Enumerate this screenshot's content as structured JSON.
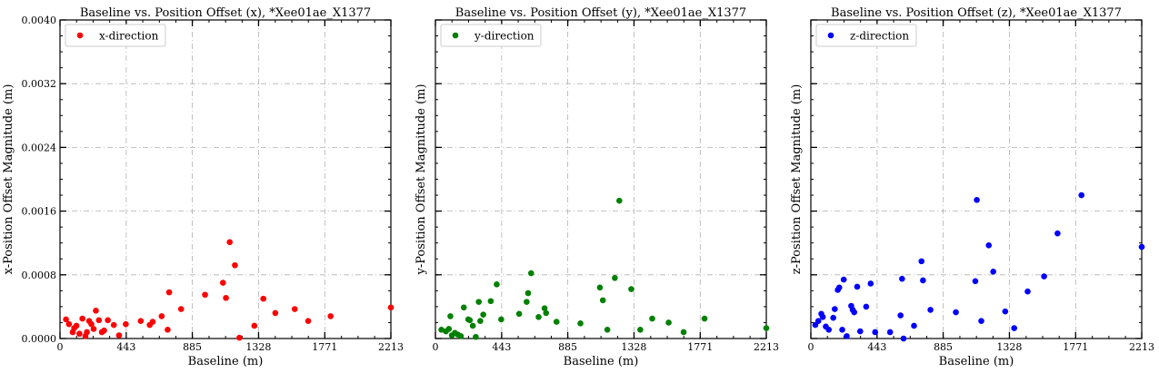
{
  "figure": {
    "ylabel_ticks": [
      "0.0000",
      "0.0008",
      "0.0016",
      "0.0024",
      "0.0032",
      "0.0040"
    ],
    "xlabel_ticks": [
      "0",
      "443",
      "885",
      "1328",
      "1771",
      "2213"
    ]
  },
  "chart_data": [
    {
      "type": "scatter",
      "title": "Baseline vs. Position Offset (x), *Xee01ae_X1377",
      "xlabel": "Baseline (m)",
      "ylabel": "x-Position Offset Magnitude (m)",
      "xlim": [
        0,
        2213
      ],
      "ylim": [
        0,
        0.004
      ],
      "xticks": [
        0,
        443,
        885,
        1328,
        1771,
        2213
      ],
      "yticks": [
        0,
        0.0008,
        0.0016,
        0.0024,
        0.0032,
        0.004
      ],
      "ytick_labels_shown": true,
      "grid": true,
      "legend": "top-left",
      "series": [
        {
          "name": "x-direction",
          "color": "#ff0000",
          "points": [
            [
              40,
              0.00024
            ],
            [
              60,
              0.00018
            ],
            [
              85,
              8e-05
            ],
            [
              95,
              0.00013
            ],
            [
              110,
              0.00016
            ],
            [
              130,
              6e-05
            ],
            [
              150,
              0.00025
            ],
            [
              170,
              3e-05
            ],
            [
              180,
              8e-05
            ],
            [
              195,
              0.00022
            ],
            [
              210,
              0.00018
            ],
            [
              225,
              0.00012
            ],
            [
              240,
              0.00035
            ],
            [
              260,
              0.00023
            ],
            [
              280,
              8e-05
            ],
            [
              295,
              0.0001
            ],
            [
              320,
              0.00023
            ],
            [
              360,
              0.00017
            ],
            [
              395,
              4e-05
            ],
            [
              440,
              0.00018
            ],
            [
              540,
              0.00022
            ],
            [
              600,
              0.00017
            ],
            [
              620,
              0.00021
            ],
            [
              680,
              0.00028
            ],
            [
              720,
              0.00011
            ],
            [
              730,
              0.00058
            ],
            [
              810,
              0.00037
            ],
            [
              970,
              0.00055
            ],
            [
              1090,
              0.0007
            ],
            [
              1110,
              0.00051
            ],
            [
              1135,
              0.00121
            ],
            [
              1170,
              0.00092
            ],
            [
              1200,
              1e-05
            ],
            [
              1300,
              0.00016
            ],
            [
              1360,
              0.0005
            ],
            [
              1440,
              0.00032
            ],
            [
              1570,
              0.00037
            ],
            [
              1660,
              0.00022
            ],
            [
              1810,
              0.00028
            ],
            [
              2213,
              0.00039
            ]
          ]
        }
      ]
    },
    {
      "type": "scatter",
      "title": "Baseline vs. Position Offset (y), *Xee01ae_X1377",
      "xlabel": "Baseline (m)",
      "ylabel": "y-Position Offset Magnitude (m)",
      "xlim": [
        0,
        2213
      ],
      "ylim": [
        0,
        0.004
      ],
      "xticks": [
        0,
        443,
        885,
        1328,
        1771,
        2213
      ],
      "yticks": [
        0,
        0.0008,
        0.0016,
        0.0024,
        0.0032,
        0.004
      ],
      "ytick_labels_shown": false,
      "grid": true,
      "legend": "top-left",
      "series": [
        {
          "name": "y-direction",
          "color": "#008000",
          "points": [
            [
              40,
              0.00011
            ],
            [
              70,
              9e-05
            ],
            [
              90,
              0.00012
            ],
            [
              100,
              0.00028
            ],
            [
              110,
              4e-05
            ],
            [
              130,
              7e-05
            ],
            [
              150,
              5e-05
            ],
            [
              170,
              3e-05
            ],
            [
              190,
              0.00039
            ],
            [
              220,
              0.00024
            ],
            [
              230,
              0.00023
            ],
            [
              250,
              0.00016
            ],
            [
              270,
              2e-05
            ],
            [
              290,
              0.00046
            ],
            [
              300,
              0.00022
            ],
            [
              320,
              0.0003
            ],
            [
              370,
              0.00047
            ],
            [
              410,
              0.00068
            ],
            [
              440,
              0.00024
            ],
            [
              560,
              0.00031
            ],
            [
              610,
              0.00046
            ],
            [
              620,
              0.00057
            ],
            [
              640,
              0.00082
            ],
            [
              690,
              0.00027
            ],
            [
              730,
              0.00038
            ],
            [
              740,
              0.00032
            ],
            [
              810,
              0.00021
            ],
            [
              970,
              0.00019
            ],
            [
              1100,
              0.00064
            ],
            [
              1120,
              0.00048
            ],
            [
              1150,
              0.00011
            ],
            [
              1200,
              0.00076
            ],
            [
              1230,
              0.00173
            ],
            [
              1310,
              0.00062
            ],
            [
              1370,
              0.00011
            ],
            [
              1450,
              0.00025
            ],
            [
              1560,
              0.0002
            ],
            [
              1660,
              8e-05
            ],
            [
              1800,
              0.00025
            ],
            [
              2213,
              0.00013
            ]
          ]
        }
      ]
    },
    {
      "type": "scatter",
      "title": "Baseline vs. Position Offset (z), *Xee01ae_X1377",
      "xlabel": "Baseline (m)",
      "ylabel": "z-Position Offset Magnitude (m)",
      "xlim": [
        0,
        2213
      ],
      "ylim": [
        0,
        0.004
      ],
      "xticks": [
        0,
        443,
        885,
        1328,
        1771,
        2213
      ],
      "yticks": [
        0,
        0.0008,
        0.0016,
        0.0024,
        0.0032,
        0.004
      ],
      "ytick_labels_shown": false,
      "grid": true,
      "legend": "top-left",
      "series": [
        {
          "name": "z-direction",
          "color": "#0000ff",
          "points": [
            [
              30,
              0.00017
            ],
            [
              50,
              0.00022
            ],
            [
              70,
              0.00031
            ],
            [
              80,
              0.00027
            ],
            [
              100,
              0.00015
            ],
            [
              120,
              0.00011
            ],
            [
              150,
              0.00026
            ],
            [
              160,
              0.00037
            ],
            [
              180,
              0.00061
            ],
            [
              190,
              0.00064
            ],
            [
              210,
              0.00011
            ],
            [
              220,
              0.00074
            ],
            [
              240,
              3e-05
            ],
            [
              270,
              0.00041
            ],
            [
              280,
              0.00036
            ],
            [
              290,
              0.00033
            ],
            [
              310,
              0.00065
            ],
            [
              330,
              9e-05
            ],
            [
              370,
              0.0004
            ],
            [
              400,
              0.00069
            ],
            [
              430,
              8e-05
            ],
            [
              530,
              8e-05
            ],
            [
              600,
              0.00029
            ],
            [
              610,
              0.00075
            ],
            [
              620,
              0.0
            ],
            [
              690,
              0.00016
            ],
            [
              740,
              0.00097
            ],
            [
              750,
              0.00073
            ],
            [
              800,
              0.00036
            ],
            [
              970,
              0.00033
            ],
            [
              1100,
              0.00072
            ],
            [
              1110,
              0.00174
            ],
            [
              1140,
              0.00022
            ],
            [
              1190,
              0.00117
            ],
            [
              1220,
              0.00084
            ],
            [
              1300,
              0.00034
            ],
            [
              1360,
              0.00013
            ],
            [
              1450,
              0.00059
            ],
            [
              1560,
              0.00078
            ],
            [
              1650,
              0.00132
            ],
            [
              1810,
              0.0018
            ],
            [
              2213,
              0.00115
            ]
          ]
        }
      ]
    }
  ]
}
